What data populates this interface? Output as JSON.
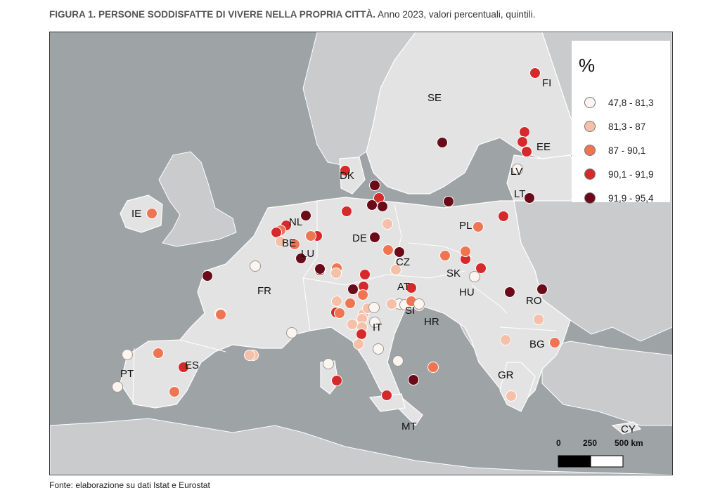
{
  "title": {
    "bold": "FIGURA 1. PERSONE SODDISFATTE DI VIVERE NELLA PROPRIA CITTÀ.",
    "rest": " Anno 2023, valori percentuali, quintili."
  },
  "legend": {
    "title": "%",
    "classes": [
      {
        "label": "47,8 - 81,3",
        "color": "#fcf4ee"
      },
      {
        "label": "81,3 - 87",
        "color": "#f5c0a8"
      },
      {
        "label": "87 - 90,1",
        "color": "#ef7452"
      },
      {
        "label": "90,1 - 91,9",
        "color": "#d42a2b"
      },
      {
        "label": "91,9 - 95,4",
        "color": "#6b0a18"
      }
    ]
  },
  "scale_bar": {
    "labels": [
      "0",
      "250",
      "500 km"
    ]
  },
  "source": "Fonte: elaborazione su dati Istat e Eurostat",
  "colors": {
    "sea": "#9ea3a6",
    "land": "#e3e3e3",
    "land_outside": "#c9cbcc",
    "border": "#ffffff"
  },
  "countries": [
    "FI",
    "SE",
    "EE",
    "LV",
    "LT",
    "DK",
    "IE",
    "NL",
    "BE",
    "LU",
    "DE",
    "PL",
    "CZ",
    "SK",
    "AT",
    "HU",
    "RO",
    "FR",
    "SI",
    "HR",
    "IT",
    "BG",
    "ES",
    "PT",
    "GR",
    "MT",
    "CY"
  ],
  "cities": [
    {
      "country": "FI",
      "class": 3
    },
    {
      "country": "FI",
      "class": 3
    },
    {
      "country": "FI",
      "class": 3
    },
    {
      "country": "SE",
      "class": 4
    },
    {
      "country": "SE",
      "class": 3
    },
    {
      "country": "SE",
      "class": 4
    },
    {
      "country": "DK",
      "class": 3
    },
    {
      "country": "DK",
      "class": 4
    },
    {
      "country": "EE",
      "class": 3
    },
    {
      "country": "LV",
      "class": 0
    },
    {
      "country": "LT",
      "class": 4
    },
    {
      "country": "IE",
      "class": 2
    },
    {
      "country": "NL",
      "class": 4
    },
    {
      "country": "NL",
      "class": 3
    },
    {
      "country": "NL",
      "class": 2
    },
    {
      "country": "BE",
      "class": 3
    },
    {
      "country": "BE",
      "class": 2
    },
    {
      "country": "BE",
      "class": 1
    },
    {
      "country": "LU",
      "class": 4
    },
    {
      "country": "DE",
      "class": 3
    },
    {
      "country": "DE",
      "class": 4
    },
    {
      "country": "DE",
      "class": 4
    },
    {
      "country": "DE",
      "class": 1
    },
    {
      "country": "DE",
      "class": 3
    },
    {
      "country": "DE",
      "class": 2
    },
    {
      "country": "DE",
      "class": 4
    },
    {
      "country": "DE",
      "class": 2
    },
    {
      "country": "DE",
      "class": 3
    },
    {
      "country": "DE",
      "class": 1
    },
    {
      "country": "DE",
      "class": 2
    },
    {
      "country": "PL",
      "class": 4
    },
    {
      "country": "PL",
      "class": 3
    },
    {
      "country": "PL",
      "class": 2
    },
    {
      "country": "PL",
      "class": 2
    },
    {
      "country": "PL",
      "class": 3
    },
    {
      "country": "CZ",
      "class": 4
    },
    {
      "country": "CZ",
      "class": 1
    },
    {
      "country": "SK",
      "class": 2
    },
    {
      "country": "SK",
      "class": 3
    },
    {
      "country": "AT",
      "class": 3
    },
    {
      "country": "AT",
      "class": 1
    },
    {
      "country": "HU",
      "class": 0
    },
    {
      "country": "RO",
      "class": 4
    },
    {
      "country": "RO",
      "class": 4
    },
    {
      "country": "BG",
      "class": 1
    },
    {
      "country": "BG",
      "class": 0
    },
    {
      "country": "BG",
      "class": 2
    },
    {
      "country": "FR",
      "class": 0
    },
    {
      "country": "FR",
      "class": 4
    },
    {
      "country": "FR",
      "class": 4
    },
    {
      "country": "FR",
      "class": 2
    },
    {
      "country": "FR",
      "class": 3
    },
    {
      "country": "FR",
      "class": 0
    },
    {
      "country": "FR",
      "class": 1
    },
    {
      "country": "FR",
      "class": 2
    },
    {
      "country": "IT",
      "class": 3
    },
    {
      "country": "IT",
      "class": 3
    },
    {
      "country": "IT",
      "class": 4
    },
    {
      "country": "IT",
      "class": 2
    },
    {
      "country": "IT",
      "class": 2
    },
    {
      "country": "IT",
      "class": 1
    },
    {
      "country": "IT",
      "class": 1
    },
    {
      "country": "IT",
      "class": 1
    },
    {
      "country": "IT",
      "class": 1
    },
    {
      "country": "IT",
      "class": 1
    },
    {
      "country": "IT",
      "class": 0
    },
    {
      "country": "IT",
      "class": 0
    },
    {
      "country": "IT",
      "class": 0
    },
    {
      "country": "IT",
      "class": 1
    },
    {
      "country": "IT",
      "class": 3
    },
    {
      "country": "IT",
      "class": 0
    },
    {
      "country": "IT",
      "class": 1
    },
    {
      "country": "IT",
      "class": 0
    },
    {
      "country": "IT",
      "class": 0
    },
    {
      "country": "IT",
      "class": 0
    },
    {
      "country": "IT",
      "class": 3
    },
    {
      "country": "IT",
      "class": 3
    },
    {
      "country": "SI",
      "class": 4
    },
    {
      "country": "SI",
      "class": 2
    },
    {
      "country": "HR",
      "class": 1
    },
    {
      "country": "ES",
      "class": 2
    },
    {
      "country": "ES",
      "class": 0
    },
    {
      "country": "ES",
      "class": 2
    },
    {
      "country": "ES",
      "class": 3
    },
    {
      "country": "ES",
      "class": 1
    },
    {
      "country": "PT",
      "class": 4
    },
    {
      "country": "PT",
      "class": 2
    },
    {
      "country": "GR",
      "class": 0
    },
    {
      "country": "GR",
      "class": 0
    },
    {
      "country": "MT",
      "class": 1
    },
    {
      "country": "CY",
      "class": 1
    }
  ]
}
